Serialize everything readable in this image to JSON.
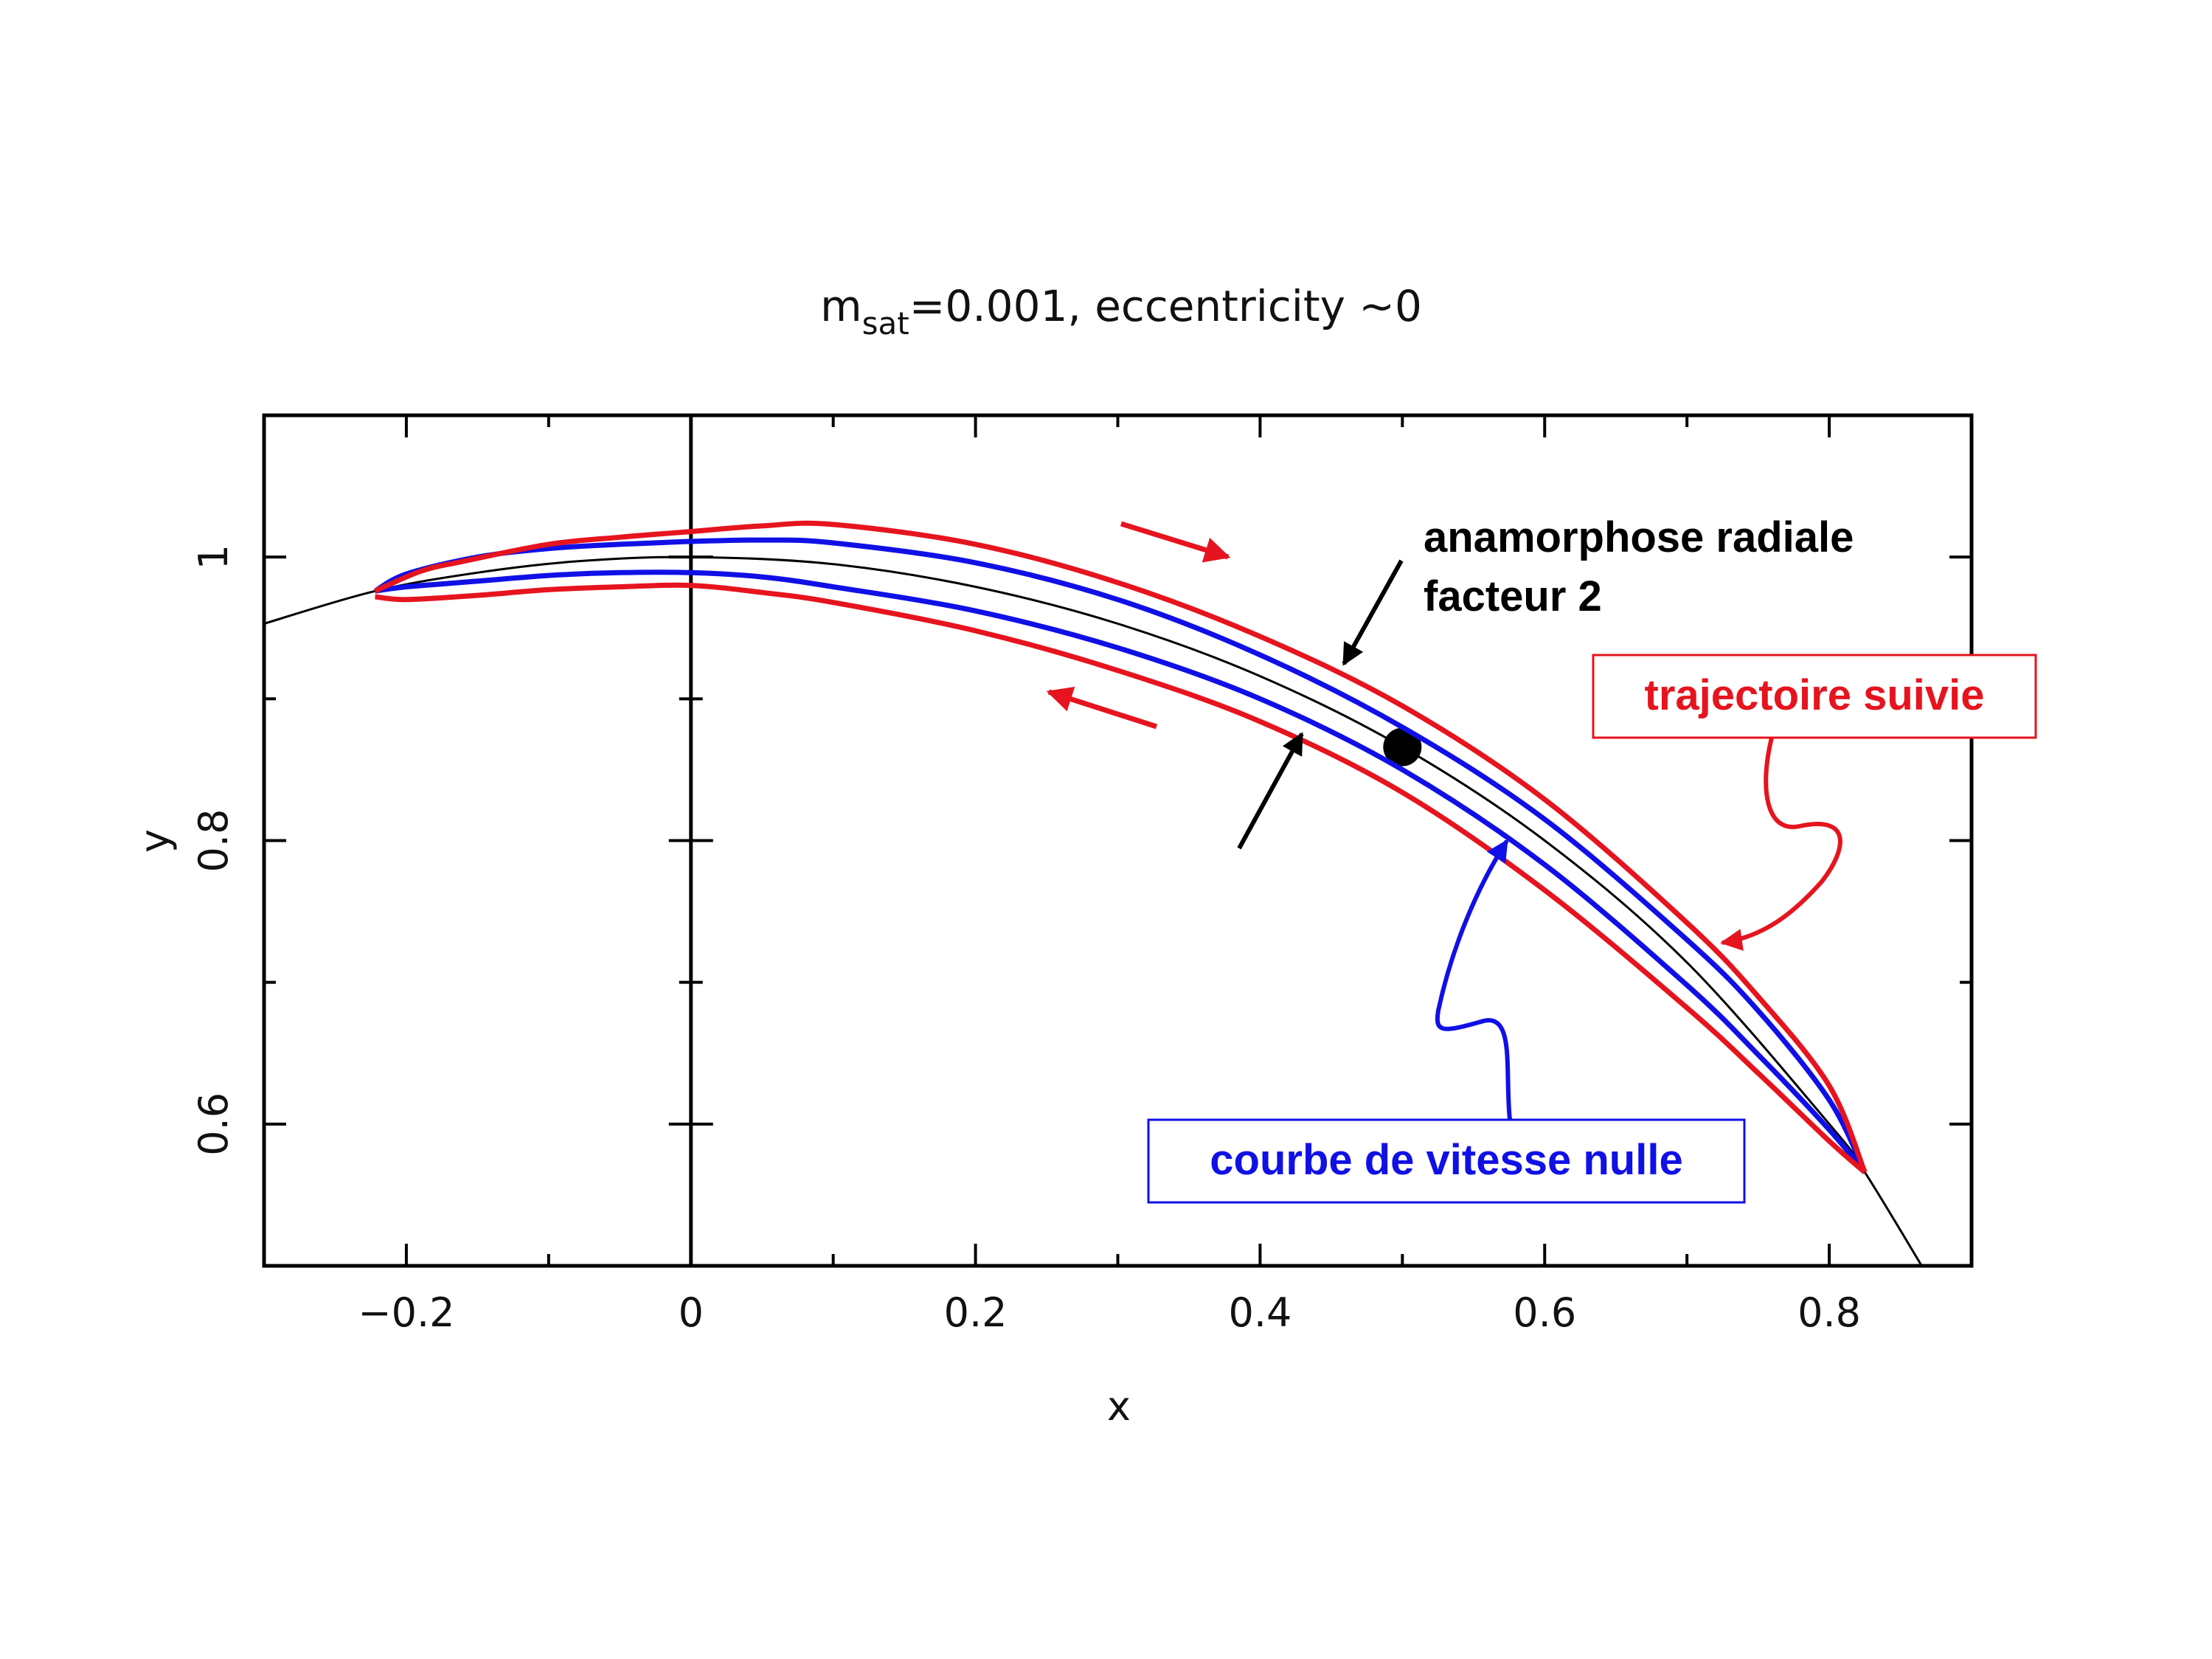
{
  "chart_data": {
    "type": "line",
    "title_main": "m",
    "title_sub": "sat",
    "title_rest": "=0.001, eccentricity ~0",
    "xlabel": "x",
    "ylabel": "y",
    "xlim": [
      -0.3,
      0.9
    ],
    "ylim": [
      0.5,
      1.1
    ],
    "x_ticks": [
      -0.2,
      0,
      0.2,
      0.4,
      0.6,
      0.8
    ],
    "x_tick_labels": [
      "−0.2",
      "0",
      "0.2",
      "0.4",
      "0.6",
      "0.8"
    ],
    "y_ticks": [
      0.6,
      0.8,
      1.0
    ],
    "y_tick_labels": [
      "0.6",
      "0.8",
      "1"
    ],
    "x_minor_step": 0.1,
    "y_minor_step": 0.1,
    "vertical_line_x": 0,
    "series": [
      {
        "role": "orbit",
        "color": "#000000",
        "x": [
          -0.3,
          -0.222,
          -0.15,
          -0.08,
          0,
          0.1,
          0.2,
          0.3,
          0.4,
          0.5,
          0.6,
          0.7,
          0.8,
          0.825,
          0.865
        ],
        "y": [
          0.953,
          0.976,
          0.989,
          0.997,
          1.0,
          0.995,
          0.979,
          0.953,
          0.916,
          0.866,
          0.8,
          0.714,
          0.6,
          0.566,
          0.5
        ]
      },
      {
        "role": "zero-velocity-outer",
        "color": "#1010e6",
        "x": [
          -0.222,
          -0.2,
          -0.15,
          -0.1,
          -0.05,
          0,
          0.05,
          0.1,
          0.2,
          0.3,
          0.4,
          0.5,
          0.6,
          0.7,
          0.75,
          0.8,
          0.825
        ],
        "y": [
          0.976,
          0.988,
          1.0,
          1.006,
          1.009,
          1.011,
          1.012,
          1.01,
          0.996,
          0.97,
          0.931,
          0.88,
          0.815,
          0.73,
          0.68,
          0.617,
          0.566
        ]
      },
      {
        "role": "zero-velocity-inner",
        "color": "#1010e6",
        "x": [
          -0.222,
          -0.2,
          -0.15,
          -0.1,
          -0.05,
          0,
          0.05,
          0.1,
          0.2,
          0.3,
          0.4,
          0.5,
          0.6,
          0.7,
          0.75,
          0.8,
          0.825
        ],
        "y": [
          0.976,
          0.979,
          0.983,
          0.987,
          0.989,
          0.989,
          0.986,
          0.979,
          0.962,
          0.936,
          0.9,
          0.85,
          0.783,
          0.698,
          0.649,
          0.596,
          0.566
        ]
      },
      {
        "role": "followed-trajectory-outer",
        "color": "#e6141e",
        "x": [
          -0.222,
          -0.19,
          -0.16,
          -0.1,
          -0.05,
          0,
          0.05,
          0.1,
          0.2,
          0.3,
          0.4,
          0.5,
          0.6,
          0.7,
          0.75,
          0.8,
          0.825
        ],
        "y": [
          0.976,
          0.99,
          0.997,
          1.009,
          1.014,
          1.018,
          1.022,
          1.023,
          1.009,
          0.982,
          0.944,
          0.895,
          0.829,
          0.742,
          0.69,
          0.627,
          0.566
        ]
      },
      {
        "role": "followed-trajectory-inner",
        "color": "#e6141e",
        "x": [
          -0.222,
          -0.2,
          -0.15,
          -0.1,
          -0.05,
          0,
          0.05,
          0.1,
          0.2,
          0.3,
          0.4,
          0.5,
          0.6,
          0.7,
          0.75,
          0.8,
          0.825
        ],
        "y": [
          0.972,
          0.97,
          0.973,
          0.977,
          0.979,
          0.98,
          0.975,
          0.968,
          0.948,
          0.92,
          0.884,
          0.834,
          0.765,
          0.682,
          0.636,
          0.588,
          0.566
        ]
      }
    ],
    "satellite_point": {
      "x": 0.5,
      "y": 0.866,
      "color": "#000000"
    }
  },
  "annotations": {
    "anamorphose_line1": "anamorphose radiale",
    "anamorphose_line2": "facteur 2",
    "trajectoire_label": "trajectoire suivie",
    "courbe_label": "courbe de vitesse nulle",
    "red": "#e6141e",
    "blue": "#1010e6"
  }
}
